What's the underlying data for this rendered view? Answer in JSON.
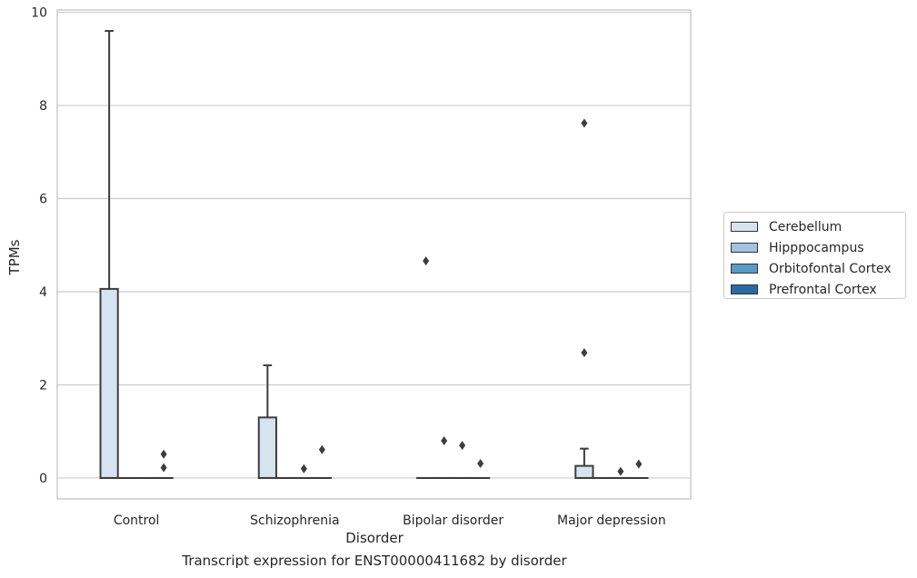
{
  "chart_data": {
    "type": "box",
    "xlabel": "Disorder",
    "ylabel": "TPMs",
    "caption": "Transcript expression for ENST00000411682 by disorder",
    "ylim": [
      -0.45,
      10.05
    ],
    "yticks": [
      0,
      2,
      4,
      6,
      8,
      10
    ],
    "grid": true,
    "legend_position": "right",
    "categories": [
      "Control",
      "Schizophrenia",
      "Bipolar disorder",
      "Major depression"
    ],
    "series": [
      {
        "name": "Cerebellum",
        "color": "#d6e3f1",
        "boxes": [
          {
            "whislo": 0,
            "q1": 0,
            "med": 0,
            "q3": 4.06,
            "whishi": 9.6,
            "fliers": []
          },
          {
            "whislo": 0,
            "q1": 0,
            "med": 0,
            "q3": 1.3,
            "whishi": 2.42,
            "fliers": []
          },
          {
            "whislo": 0,
            "q1": 0,
            "med": 0,
            "q3": 0,
            "whishi": 0,
            "fliers": [
              4.66
            ]
          },
          {
            "whislo": 0,
            "q1": 0,
            "med": 0,
            "q3": 0.26,
            "whishi": 0.63,
            "fliers": [
              7.62,
              2.69
            ]
          }
        ]
      },
      {
        "name": "Hipppocampus",
        "color": "#a0c4df",
        "boxes": [
          {
            "whislo": 0,
            "q1": 0,
            "med": 0,
            "q3": 0,
            "whishi": 0,
            "fliers": []
          },
          {
            "whislo": 0,
            "q1": 0,
            "med": 0,
            "q3": 0,
            "whishi": 0,
            "fliers": []
          },
          {
            "whislo": 0,
            "q1": 0,
            "med": 0,
            "q3": 0,
            "whishi": 0,
            "fliers": [
              0.8
            ]
          },
          {
            "whislo": 0,
            "q1": 0,
            "med": 0,
            "q3": 0,
            "whishi": 0,
            "fliers": []
          }
        ]
      },
      {
        "name": "Orbitofontal Cortex",
        "color": "#5a9ac6",
        "boxes": [
          {
            "whislo": 0,
            "q1": 0,
            "med": 0,
            "q3": 0,
            "whishi": 0,
            "fliers": []
          },
          {
            "whislo": 0,
            "q1": 0,
            "med": 0,
            "q3": 0,
            "whishi": 0,
            "fliers": [
              0.2
            ]
          },
          {
            "whislo": 0,
            "q1": 0,
            "med": 0,
            "q3": 0,
            "whishi": 0,
            "fliers": [
              0.7
            ]
          },
          {
            "whislo": 0,
            "q1": 0,
            "med": 0,
            "q3": 0,
            "whishi": 0,
            "fliers": [
              0.14
            ]
          }
        ]
      },
      {
        "name": "Prefrontal Cortex",
        "color": "#2b6aa5",
        "boxes": [
          {
            "whislo": 0,
            "q1": 0,
            "med": 0,
            "q3": 0,
            "whishi": 0,
            "fliers": [
              0.51,
              0.22
            ]
          },
          {
            "whislo": 0,
            "q1": 0,
            "med": 0,
            "q3": 0,
            "whishi": 0,
            "fliers": [
              0.61
            ]
          },
          {
            "whislo": 0,
            "q1": 0,
            "med": 0,
            "q3": 0,
            "whishi": 0,
            "fliers": [
              0.31
            ]
          },
          {
            "whislo": 0,
            "q1": 0,
            "med": 0,
            "q3": 0,
            "whishi": 0,
            "fliers": [
              0.3
            ]
          }
        ]
      }
    ],
    "colors": {
      "grid": "#cccccc",
      "spine": "#cccccc",
      "box_edge": "#3d3d3d",
      "flier": "#3d3d3d"
    }
  }
}
